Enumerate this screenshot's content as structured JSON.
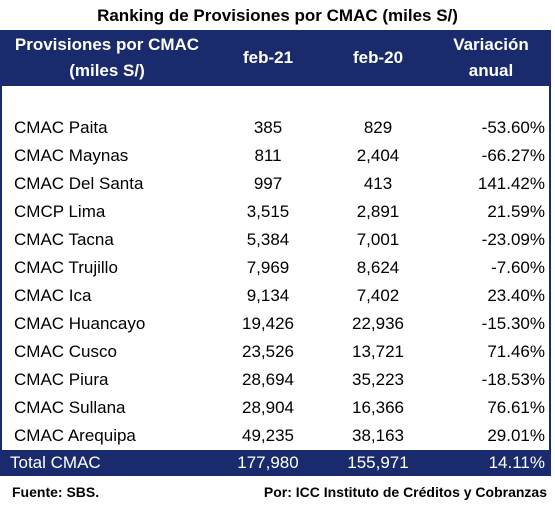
{
  "title": "Ranking de Provisiones por CMAC (miles S/)",
  "headers": {
    "col1_line1": "Provisiones por CMAC",
    "col1_line2": "(miles S/)",
    "col2": "feb-21",
    "col3": "feb-20",
    "col4_line1": "Variación",
    "col4_line2": "anual"
  },
  "rows": [
    {
      "name": "CMAC Paita",
      "feb21": "385",
      "feb20": "829",
      "variation": "-53.60%"
    },
    {
      "name": "CMAC Maynas",
      "feb21": "811",
      "feb20": "2,404",
      "variation": "-66.27%"
    },
    {
      "name": "CMAC Del Santa",
      "feb21": "997",
      "feb20": "413",
      "variation": "141.42%"
    },
    {
      "name": "CMCP Lima",
      "feb21": "3,515",
      "feb20": "2,891",
      "variation": "21.59%"
    },
    {
      "name": "CMAC Tacna",
      "feb21": "5,384",
      "feb20": "7,001",
      "variation": "-23.09%"
    },
    {
      "name": "CMAC Trujillo",
      "feb21": "7,969",
      "feb20": "8,624",
      "variation": "-7.60%"
    },
    {
      "name": "CMAC Ica",
      "feb21": "9,134",
      "feb20": "7,402",
      "variation": "23.40%"
    },
    {
      "name": "CMAC Huancayo",
      "feb21": "19,426",
      "feb20": "22,936",
      "variation": "-15.30%"
    },
    {
      "name": "CMAC Cusco",
      "feb21": "23,526",
      "feb20": "13,721",
      "variation": "71.46%"
    },
    {
      "name": "CMAC Piura",
      "feb21": "28,694",
      "feb20": "35,223",
      "variation": "-18.53%"
    },
    {
      "name": "CMAC Sullana",
      "feb21": "28,904",
      "feb20": "16,366",
      "variation": "76.61%"
    },
    {
      "name": "CMAC Arequipa",
      "feb21": "49,235",
      "feb20": "38,163",
      "variation": "29.01%"
    }
  ],
  "total": {
    "name": "Total CMAC",
    "feb21": "177,980",
    "feb20": "155,971",
    "variation": "14.11%"
  },
  "footer": {
    "source": "Fuente: SBS.",
    "credit": "Por: ICC Instituto de Créditos y Cobranzas"
  },
  "colors": {
    "header_bg": "#1a2b6d",
    "header_text": "#ffffff"
  }
}
